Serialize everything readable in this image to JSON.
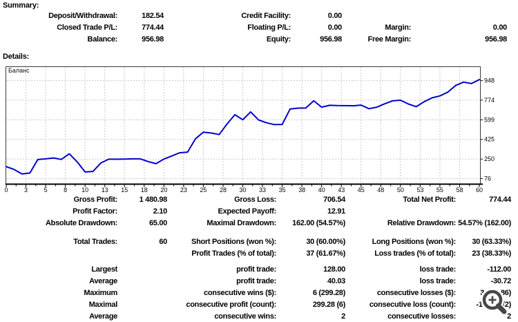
{
  "summary": {
    "heading": "Summary:",
    "rows": [
      {
        "l1": "Deposit/Withdrawal:",
        "v1": "182.54",
        "l2": "Credit Facility:",
        "v2": "0.00",
        "l3": "",
        "v3": ""
      },
      {
        "l1": "Closed Trade P/L:",
        "v1": "774.44",
        "l2": "Floating P/L:",
        "v2": "0.00",
        "l3": "Margin:",
        "v3": "0.00"
      },
      {
        "l1": "Balance:",
        "v1": "956.98",
        "l2": "Equity:",
        "v2": "956.98",
        "l3": "Free Margin:",
        "v3": "956.98"
      }
    ]
  },
  "details": {
    "heading": "Details:"
  },
  "chart_data": {
    "type": "line",
    "title": "Баланс",
    "xlabel": "",
    "ylabel": "",
    "legend_position": "top-left",
    "grid": true,
    "line_color": "#0000CC",
    "grid_color": "#c8c8c8",
    "xlim": [
      0,
      60
    ],
    "ylim": [
      30,
      1075
    ],
    "yticks": [
      948,
      774,
      599,
      425,
      250,
      76
    ],
    "xtick_labels": [
      0,
      3,
      5,
      8,
      10,
      13,
      15,
      18,
      20,
      23,
      25,
      28,
      30,
      33,
      35,
      38,
      40,
      43,
      45,
      48,
      50,
      53,
      55,
      58,
      60
    ],
    "series": [
      {
        "name": "Баланс",
        "values": [
          182.5,
          158,
          117.5,
          126,
          246,
          252,
          260,
          247,
          297,
          225,
          135,
          140,
          215,
          249,
          249,
          250,
          252,
          252,
          228,
          209,
          250,
          278,
          306,
          312,
          430,
          490,
          482,
          468,
          562,
          645,
          600,
          670,
          598,
          573,
          557,
          558,
          695,
          703,
          705,
          768,
          712,
          728,
          726,
          725,
          724,
          730,
          698,
          712,
          742,
          768,
          774,
          740,
          716,
          760,
          795,
          812,
          845,
          905,
          935,
          922,
          957
        ]
      }
    ]
  },
  "stats": {
    "groups": [
      [
        {
          "l1": "Gross Profit:",
          "v1": "1 480.98",
          "l2": "Gross Loss:",
          "v2": "706.54",
          "l3": "Total Net Profit:",
          "v3": "774.44"
        },
        {
          "l1": "Profit Factor:",
          "v1": "2.10",
          "l2": "Expected Payoff:",
          "v2": "12.91",
          "l3": "",
          "v3": ""
        },
        {
          "l1": "Absolute Drawdown:",
          "v1": "65.00",
          "l2": "Maximal Drawdown:",
          "v2": "162.00 (54.57%)",
          "l3": "Relative Drawdown:",
          "v3": "54.57% (162.00)"
        }
      ],
      [
        {
          "l1": "Total Trades:",
          "v1": "60",
          "l2": "Short Positions (won %):",
          "v2": "30 (60.00%)",
          "l3": "Long Positions (won %):",
          "v3": "30 (63.33%)"
        },
        {
          "l1": "",
          "v1": "",
          "l2": "Profit Trades (% of total):",
          "v2": "37 (61.67%)",
          "l3": "Loss trades (% of total):",
          "v3": "23 (38.33%)"
        }
      ],
      [
        {
          "l1": "Largest",
          "v1": "",
          "l2": "profit trade:",
          "v2": "128.00",
          "l3": "loss trade:",
          "v3": "-112.00"
        },
        {
          "l1": "Average",
          "v1": "",
          "l2": "profit trade:",
          "v2": "40.03",
          "l3": "loss trade:",
          "v3": "-30.72"
        },
        {
          "l1": "Maximum",
          "v1": "",
          "l2": "consecutive wins ($):",
          "v2": "6 (299.28)",
          "l3": "consecutive losses ($):",
          "v3": "3 (-29.86)"
        },
        {
          "l1": "Maximal",
          "v1": "",
          "l2": "consecutive profit (count):",
          "v2": "299.28 (6)",
          "l3": "consecutive loss (count):",
          "v3": "-162.00 (2)"
        },
        {
          "l1": "Average",
          "v1": "",
          "l2": "consecutive wins:",
          "v2": "2",
          "l3": "consecutive losses:",
          "v3": "2"
        }
      ]
    ]
  },
  "cursor": {
    "icon": "zoom-in-magnifier"
  }
}
